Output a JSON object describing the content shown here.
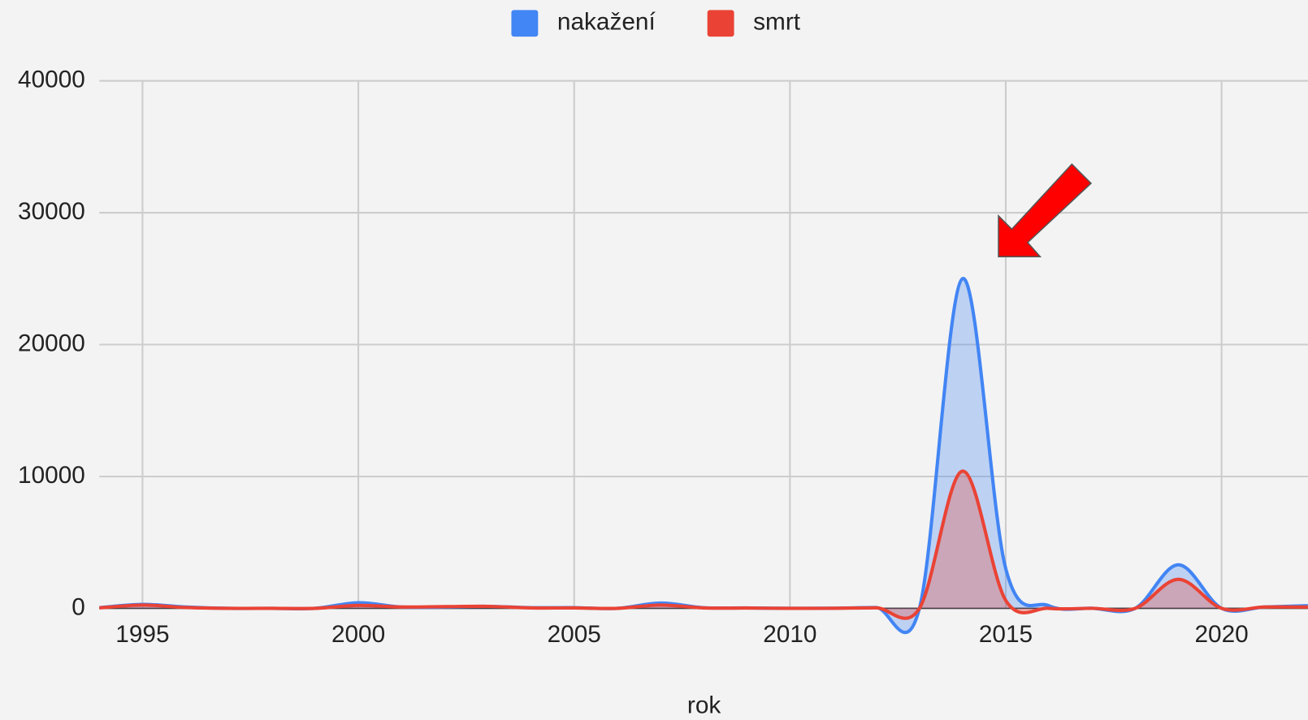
{
  "chart_data": {
    "type": "area",
    "x_label": "rok",
    "x": [
      1994,
      1995,
      1996,
      1997,
      1998,
      1999,
      2000,
      2001,
      2002,
      2003,
      2004,
      2005,
      2006,
      2007,
      2008,
      2009,
      2010,
      2011,
      2012,
      2013,
      2014,
      2015,
      2016,
      2017,
      2018,
      2019,
      2020,
      2021,
      2022
    ],
    "series": [
      {
        "name": "nakažení",
        "color": "#4285f4",
        "values": [
          50,
          300,
          100,
          0,
          0,
          0,
          425,
          100,
          100,
          150,
          50,
          50,
          0,
          400,
          50,
          30,
          0,
          10,
          60,
          0,
          25000,
          3000,
          200,
          8,
          0,
          3300,
          0,
          100,
          200
        ]
      },
      {
        "name": "smrt",
        "color": "#ea4335",
        "values": [
          30,
          250,
          60,
          0,
          0,
          0,
          224,
          100,
          130,
          150,
          30,
          30,
          0,
          250,
          30,
          20,
          0,
          5,
          40,
          0,
          10400,
          600,
          0,
          4,
          0,
          2200,
          0,
          100,
          100
        ]
      }
    ],
    "xlim": [
      1994,
      2022
    ],
    "xticks": [
      1995,
      2000,
      2005,
      2010,
      2015,
      2020
    ],
    "ylim": [
      0,
      40000
    ],
    "yticks": [
      0,
      10000,
      20000,
      30000,
      40000
    ],
    "grid": true,
    "smooth": true,
    "legend": "top"
  }
}
